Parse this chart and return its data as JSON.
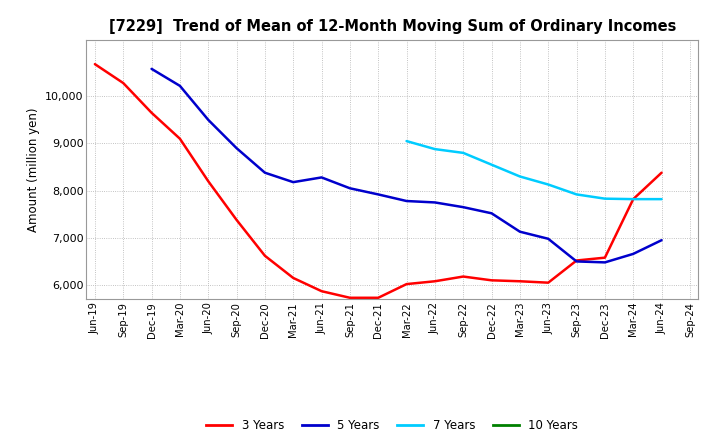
{
  "title": "[7229]  Trend of Mean of 12-Month Moving Sum of Ordinary Incomes",
  "ylabel": "Amount (million yen)",
  "background_color": "#ffffff",
  "plot_bg_color": "#ffffff",
  "grid_color": "#b0b0b0",
  "x_labels": [
    "Jun-19",
    "Sep-19",
    "Dec-19",
    "Mar-20",
    "Jun-20",
    "Sep-20",
    "Dec-20",
    "Mar-21",
    "Jun-21",
    "Sep-21",
    "Dec-21",
    "Mar-22",
    "Jun-22",
    "Sep-22",
    "Dec-22",
    "Mar-23",
    "Jun-23",
    "Sep-23",
    "Dec-23",
    "Mar-24",
    "Jun-24",
    "Sep-24"
  ],
  "ylim": [
    5700,
    11200
  ],
  "yticks": [
    6000,
    7000,
    8000,
    9000,
    10000
  ],
  "series": {
    "3 Years": {
      "color": "#ff0000",
      "data_x": [
        0,
        1,
        2,
        3,
        4,
        5,
        6,
        7,
        8,
        9,
        10,
        11,
        12,
        13,
        14,
        15,
        16,
        17,
        18,
        19,
        20
      ],
      "data_y": [
        10680,
        10280,
        9650,
        9100,
        8200,
        7380,
        6620,
        6150,
        5870,
        5730,
        5730,
        6020,
        6080,
        6180,
        6100,
        6080,
        6050,
        6520,
        6580,
        7820,
        8380
      ]
    },
    "5 Years": {
      "color": "#0000cc",
      "data_x": [
        2,
        3,
        4,
        5,
        6,
        7,
        8,
        9,
        10,
        11,
        12,
        13,
        14,
        15,
        16,
        17,
        18,
        19,
        20
      ],
      "data_y": [
        10580,
        10220,
        9500,
        8900,
        8380,
        8180,
        8280,
        8050,
        7920,
        7780,
        7750,
        7650,
        7520,
        7130,
        6980,
        6500,
        6480,
        6660,
        6950
      ]
    },
    "7 Years": {
      "color": "#00ccff",
      "data_x": [
        11,
        12,
        13,
        14,
        15,
        16,
        17,
        18,
        19,
        20
      ],
      "data_y": [
        9050,
        8880,
        8800,
        8550,
        8300,
        8130,
        7920,
        7830,
        7820,
        7820
      ]
    },
    "10 Years": {
      "color": "#008000",
      "data_x": [],
      "data_y": []
    }
  },
  "legend_labels": [
    "3 Years",
    "5 Years",
    "7 Years",
    "10 Years"
  ],
  "legend_colors": [
    "#ff0000",
    "#0000cc",
    "#00ccff",
    "#008000"
  ]
}
